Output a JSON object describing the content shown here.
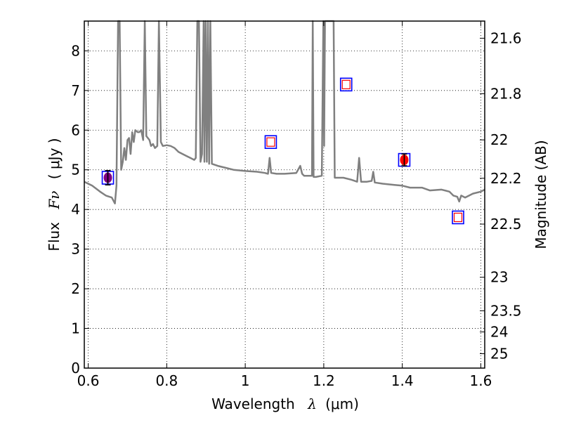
{
  "chart_data": {
    "type": "line",
    "xlabel_text": "Wavelength",
    "xlabel_symbol": "λ",
    "xlabel_unit": "(μm)",
    "ylabel_text": "Flux",
    "ylabel_symbol": "Fν",
    "ylabel_unit": "( μJy )",
    "ylabel_right": "Magnitude (AB)",
    "xlim": [
      0.59,
      1.61
    ],
    "ylim": [
      0,
      8.75
    ],
    "grid": true,
    "x_ticks": [
      0.6,
      0.8,
      1.0,
      1.2,
      1.4,
      1.6
    ],
    "x_tick_labels": [
      "0.6",
      "0.8",
      "1",
      "1.2",
      "1.4",
      "1.6"
    ],
    "y_ticks": [
      0,
      1,
      2,
      3,
      4,
      5,
      6,
      7,
      8
    ],
    "y_tick_labels": [
      "0",
      "1",
      "2",
      "3",
      "4",
      "5",
      "6",
      "7",
      "8"
    ],
    "right_ticks": [
      21.6,
      21.8,
      22,
      22.2,
      22.5,
      23,
      23.5,
      24,
      25
    ],
    "right_tick_labels": [
      "21.6",
      "21.8",
      "22",
      "22.2",
      "22.5",
      "23",
      "23.5",
      "24",
      "25"
    ],
    "series": [
      {
        "color": "#808080",
        "x": [
          0.59,
          0.61,
          0.63,
          0.645,
          0.66,
          0.668,
          0.672,
          0.676,
          0.68,
          0.684,
          0.688,
          0.692,
          0.696,
          0.7,
          0.704,
          0.708,
          0.712,
          0.716,
          0.72,
          0.726,
          0.73,
          0.735,
          0.74,
          0.744,
          0.748,
          0.752,
          0.756,
          0.76,
          0.765,
          0.77,
          0.776,
          0.78,
          0.785,
          0.79,
          0.8,
          0.81,
          0.82,
          0.83,
          0.84,
          0.85,
          0.86,
          0.87,
          0.874,
          0.878,
          0.882,
          0.886,
          0.89,
          0.894,
          0.896,
          0.899,
          0.902,
          0.905,
          0.908,
          0.911,
          0.915,
          0.93,
          0.95,
          0.97,
          1.0,
          1.03,
          1.05,
          1.058,
          1.062,
          1.066,
          1.08,
          1.1,
          1.13,
          1.14,
          1.145,
          1.15,
          1.17,
          1.172,
          1.174,
          1.18,
          1.195,
          1.199,
          1.201,
          1.203,
          1.21,
          1.225,
          1.228,
          1.23,
          1.25,
          1.27,
          1.285,
          1.29,
          1.295,
          1.31,
          1.322,
          1.326,
          1.33,
          1.35,
          1.38,
          1.4,
          1.42,
          1.45,
          1.47,
          1.5,
          1.52,
          1.53,
          1.54,
          1.545,
          1.55,
          1.56,
          1.58,
          1.6,
          1.61
        ],
        "y": [
          4.7,
          4.6,
          4.45,
          4.35,
          4.3,
          4.15,
          4.6,
          8.75,
          8.75,
          5.0,
          5.2,
          5.55,
          5.25,
          5.75,
          5.8,
          5.4,
          5.95,
          5.7,
          6.0,
          5.95,
          5.95,
          6.0,
          5.75,
          8.75,
          5.85,
          5.8,
          5.75,
          5.6,
          5.65,
          5.55,
          5.6,
          8.75,
          5.7,
          5.6,
          5.62,
          5.6,
          5.55,
          5.45,
          5.4,
          5.35,
          5.3,
          5.25,
          5.3,
          8.75,
          8.75,
          5.2,
          5.4,
          8.75,
          5.2,
          8.75,
          5.2,
          8.75,
          5.15,
          8.75,
          5.15,
          5.1,
          5.05,
          5.0,
          4.97,
          4.95,
          4.92,
          4.9,
          5.3,
          4.92,
          4.9,
          4.9,
          4.92,
          5.1,
          4.9,
          4.85,
          4.85,
          8.75,
          4.82,
          4.82,
          4.85,
          8.75,
          5.6,
          8.75,
          8.75,
          8.75,
          4.8,
          4.8,
          4.8,
          4.75,
          4.7,
          5.3,
          4.7,
          4.7,
          4.72,
          4.95,
          4.68,
          4.65,
          4.62,
          4.6,
          4.55,
          4.55,
          4.48,
          4.5,
          4.45,
          4.35,
          4.32,
          4.2,
          4.35,
          4.3,
          4.4,
          4.45,
          4.5
        ]
      }
    ],
    "photometry_open": [
      {
        "x": 1.065,
        "y": 5.7
      },
      {
        "x": 1.257,
        "y": 7.15
      },
      {
        "x": 1.542,
        "y": 3.8
      }
    ],
    "photometry_detected": [
      {
        "x": 0.65,
        "y": 4.8,
        "yerr": 0.18,
        "color": "#800080"
      },
      {
        "x": 1.405,
        "y": 5.25,
        "yerr": 0.15,
        "color": "#ff0000"
      }
    ]
  }
}
